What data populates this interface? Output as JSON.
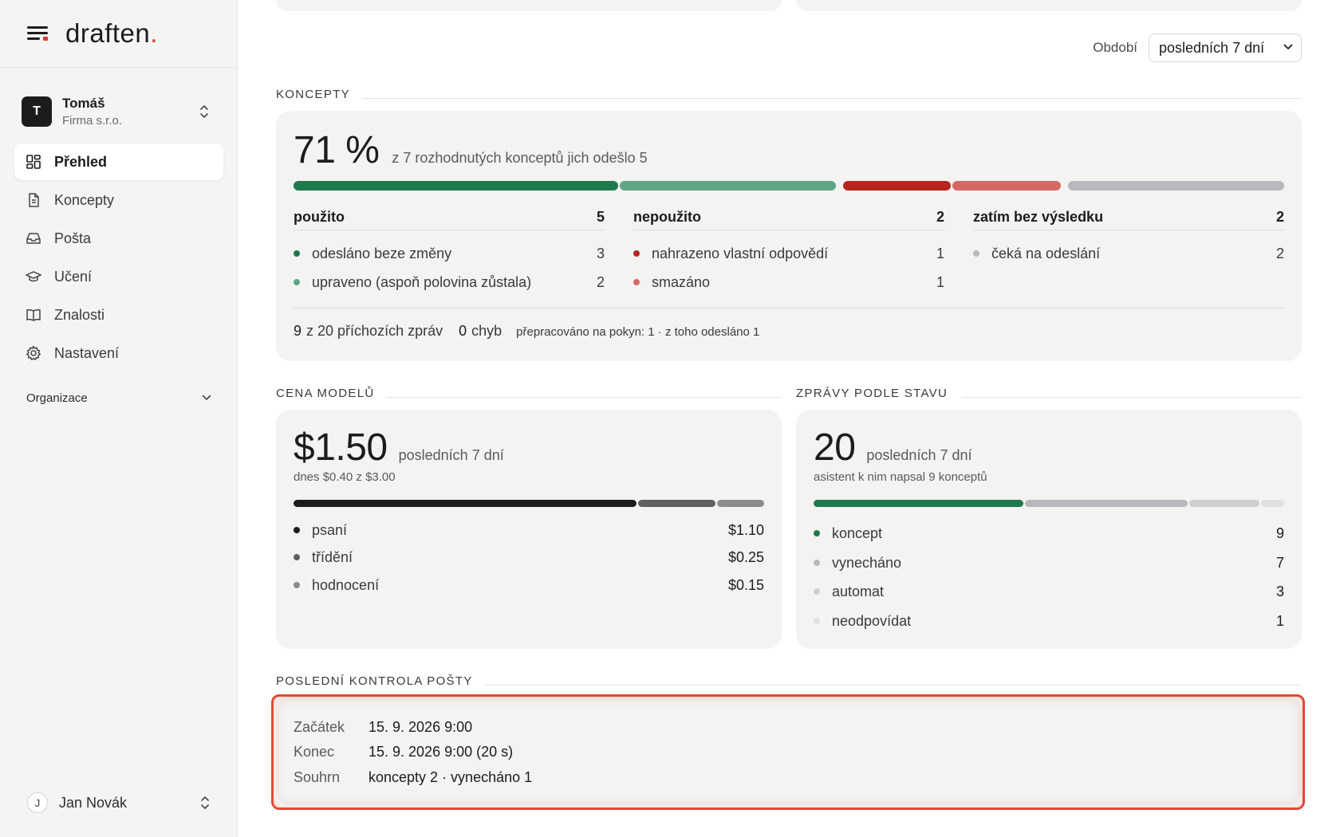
{
  "sidebar": {
    "logo": "draften",
    "logo_dot": ".",
    "org": {
      "avatar": "T",
      "name": "Tomáš",
      "company": "Firma s.r.o."
    },
    "nav": [
      {
        "label": "Přehled",
        "icon": "grid-icon",
        "active": true
      },
      {
        "label": "Koncepty",
        "icon": "document-icon",
        "active": false
      },
      {
        "label": "Pošta",
        "icon": "inbox-icon",
        "active": false
      },
      {
        "label": "Učení",
        "icon": "graduation-cap-icon",
        "active": false
      },
      {
        "label": "Znalosti",
        "icon": "book-icon",
        "active": false
      },
      {
        "label": "Nastavení",
        "icon": "gear-icon",
        "active": false
      }
    ],
    "section": "Organizace",
    "user": {
      "avatar": "J",
      "name": "Jan Novák"
    }
  },
  "period": {
    "label": "Období",
    "value": "posledních 7 dní"
  },
  "koncepty": {
    "title": "KONCEPTY",
    "percent": "71 %",
    "summary": "z 7 rozhodnutých konceptů jich odešlo 5",
    "bar_values": [
      3,
      2,
      1,
      1,
      2
    ],
    "colors": {
      "sent": "#1e7a4c",
      "edited": "#5fa585",
      "replaced": "#b8251f",
      "deleted": "#d56a65",
      "waiting": "#b9b9bd"
    },
    "columns": [
      {
        "title": "použito",
        "count": "5",
        "rows": [
          {
            "label": "odesláno beze změny",
            "value": "3",
            "color": "#1e7a4c"
          },
          {
            "label": "upraveno (aspoň polovina zůstala)",
            "value": "2",
            "color": "#5fa585"
          }
        ]
      },
      {
        "title": "nepoužito",
        "count": "2",
        "rows": [
          {
            "label": "nahrazeno vlastní odpovědí",
            "value": "1",
            "color": "#b8251f"
          },
          {
            "label": "smazáno",
            "value": "1",
            "color": "#d56a65"
          }
        ]
      },
      {
        "title": "zatím bez výsledku",
        "count": "2",
        "rows": [
          {
            "label": "čeká na odeslání",
            "value": "2",
            "color": "#b9b9bd"
          }
        ]
      }
    ],
    "footer": {
      "incoming_num": "9",
      "incoming_text": "z 20 příchozích zpráv",
      "errors_num": "0",
      "errors_text": "chyb",
      "reworked": "přepracováno na pokyn: 1 · z toho odesláno 1"
    }
  },
  "cena": {
    "title": "CENA MODELŮ",
    "amount": "$1.50",
    "period": "posledních 7 dní",
    "today": "dnes $0.40 z $3.00",
    "bar_values": [
      1.1,
      0.25,
      0.15
    ],
    "rows": [
      {
        "label": "psaní",
        "value": "$1.10",
        "color": "#1c1c1c"
      },
      {
        "label": "třídění",
        "value": "$0.25",
        "color": "#606060"
      },
      {
        "label": "hodnocení",
        "value": "$0.15",
        "color": "#8c8c8c"
      }
    ]
  },
  "zpravy": {
    "title": "ZPRÁVY PODLE STAVU",
    "count": "20",
    "period": "posledních 7 dní",
    "sub": "asistent k nim napsal 9 konceptů",
    "bar_values": [
      9,
      7,
      3,
      1
    ],
    "rows": [
      {
        "label": "koncept",
        "value": "9",
        "color": "#1e7a4c"
      },
      {
        "label": "vynecháno",
        "value": "7",
        "color": "#b9b9bd"
      },
      {
        "label": "automat",
        "value": "3",
        "color": "#cfcfd2"
      },
      {
        "label": "neodpovídat",
        "value": "1",
        "color": "#e0e0e2"
      }
    ]
  },
  "posta": {
    "title": "POSLEDNÍ KONTROLA POŠTY",
    "rows": [
      {
        "key": "Začátek",
        "value": "15. 9. 2026 9:00"
      },
      {
        "key": "Konec",
        "value": "15. 9. 2026 9:00 (20 s)"
      },
      {
        "key": "Souhrn",
        "value": "koncepty 2 · vynecháno 1"
      }
    ]
  }
}
